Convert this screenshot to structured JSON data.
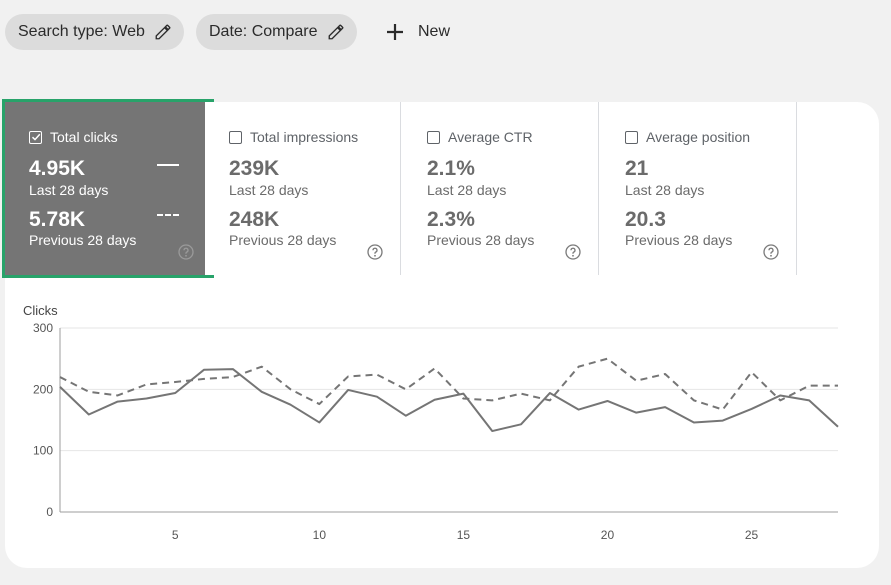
{
  "filters": {
    "search_type": "Search type: Web",
    "date": "Date: Compare",
    "new_label": "New"
  },
  "metrics": [
    {
      "label": "Total clicks",
      "checked": true,
      "current": "4.95K",
      "current_period": "Last 28 days",
      "previous": "5.78K",
      "previous_period": "Previous 28 days"
    },
    {
      "label": "Total impressions",
      "checked": false,
      "current": "239K",
      "current_period": "Last 28 days",
      "previous": "248K",
      "previous_period": "Previous 28 days"
    },
    {
      "label": "Average CTR",
      "checked": false,
      "current": "2.1%",
      "current_period": "Last 28 days",
      "previous": "2.3%",
      "previous_period": "Previous 28 days"
    },
    {
      "label": "Average position",
      "checked": false,
      "current": "21",
      "current_period": "Last 28 days",
      "previous": "20.3",
      "previous_period": "Previous 28 days"
    }
  ],
  "colors": {
    "accent_outline": "#28a36a",
    "active_card": "#757575"
  },
  "chart_data": {
    "type": "line",
    "ylabel": "Clicks",
    "ylim": [
      0,
      300
    ],
    "yticks": [
      0,
      100,
      200,
      300
    ],
    "xlim": [
      1,
      28
    ],
    "xticks": [
      5,
      10,
      15,
      20,
      25
    ],
    "x": [
      1,
      2,
      3,
      4,
      5,
      6,
      7,
      8,
      9,
      10,
      11,
      12,
      13,
      14,
      15,
      16,
      17,
      18,
      19,
      20,
      21,
      22,
      23,
      24,
      25,
      26,
      27,
      28
    ],
    "series": [
      {
        "style": "solid",
        "values": [
          204,
          159,
          180,
          185,
          194,
          232,
          233,
          196,
          175,
          146,
          199,
          188,
          157,
          183,
          193,
          132,
          143,
          194,
          167,
          181,
          162,
          171,
          146,
          149,
          168,
          190,
          182,
          139
        ]
      },
      {
        "style": "dashed",
        "values": [
          220,
          196,
          190,
          208,
          212,
          217,
          220,
          237,
          200,
          176,
          221,
          224,
          200,
          234,
          185,
          182,
          193,
          182,
          237,
          250,
          214,
          225,
          182,
          167,
          228,
          182,
          206,
          206
        ]
      }
    ]
  }
}
